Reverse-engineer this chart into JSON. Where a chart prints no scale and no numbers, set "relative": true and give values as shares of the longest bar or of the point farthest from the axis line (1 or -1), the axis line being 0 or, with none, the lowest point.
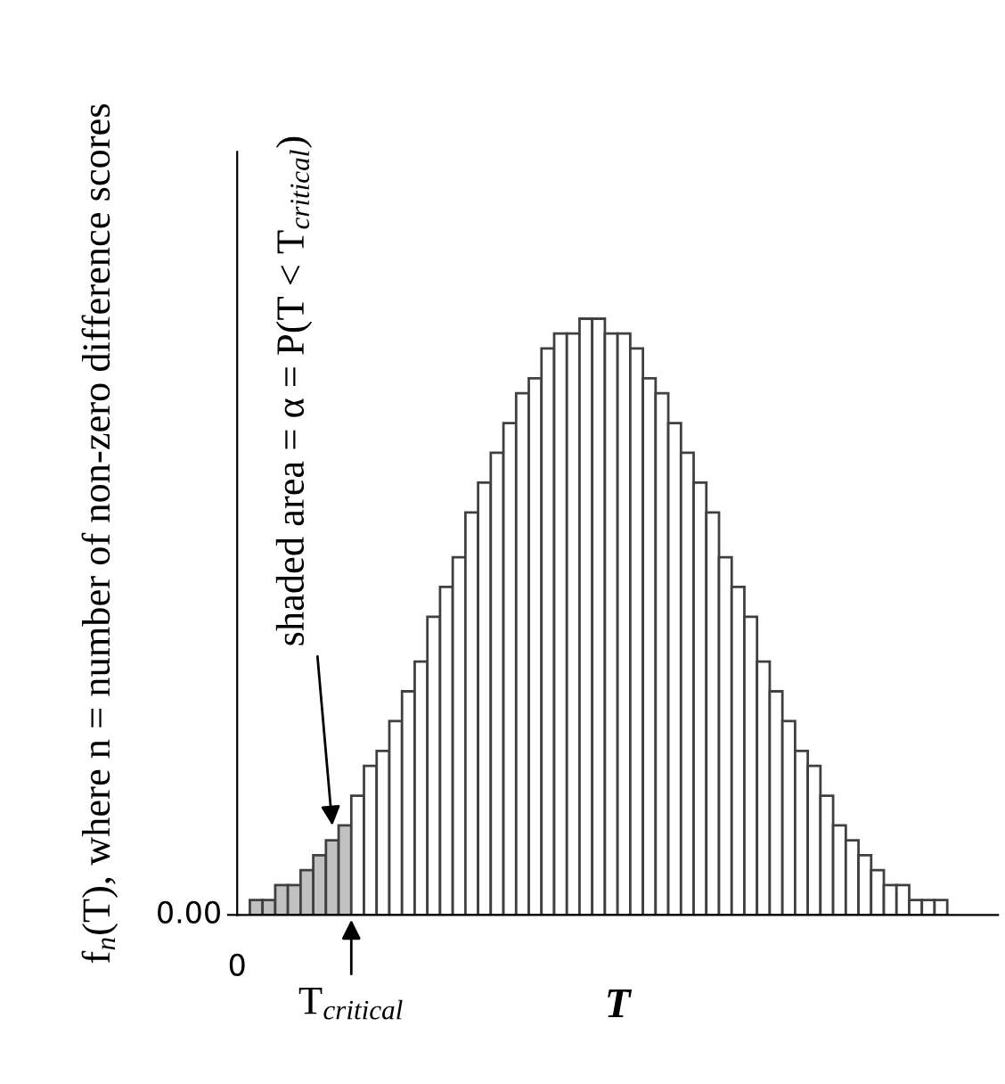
{
  "chart_data": {
    "type": "bar",
    "relative": true,
    "xlabel": "T",
    "ylabel": "f$_{n}$(T), where n = number of non-zero difference scores",
    "categories": [
      null,
      null,
      null,
      null,
      null,
      null,
      null,
      null,
      null,
      null,
      null,
      null,
      null,
      null,
      null,
      null,
      null,
      null,
      null,
      null,
      null,
      null,
      null,
      null,
      null,
      null,
      null,
      null,
      null,
      null,
      null,
      null,
      null,
      null,
      null,
      null,
      null,
      null,
      null,
      null,
      null,
      null,
      null,
      null,
      null,
      null,
      null,
      null,
      null,
      null,
      null,
      null,
      null,
      null,
      null
    ],
    "values": [
      0.025,
      0.025,
      0.05,
      0.05,
      0.075,
      0.1,
      0.125,
      0.15,
      0.2,
      0.25,
      0.275,
      0.325,
      0.375,
      0.425,
      0.5,
      0.55,
      0.6,
      0.675,
      0.725,
      0.775,
      0.825,
      0.875,
      0.9,
      0.95,
      0.975,
      0.975,
      1,
      1,
      0.975,
      0.975,
      0.95,
      0.9,
      0.875,
      0.825,
      0.775,
      0.725,
      0.675,
      0.6,
      0.55,
      0.5,
      0.425,
      0.375,
      0.325,
      0.275,
      0.25,
      0.2,
      0.15,
      0.125,
      0.1,
      0.075,
      0.05,
      0.05,
      0.025,
      0.025,
      0.025
    ],
    "colors": [
      "#c0c0c0",
      "#c0c0c0",
      "#c0c0c0",
      "#c0c0c0",
      "#c0c0c0",
      "#c0c0c0",
      "#c0c0c0",
      "#c0c0c0",
      "#ffffff",
      "#ffffff",
      "#ffffff",
      "#ffffff",
      "#ffffff",
      "#ffffff",
      "#ffffff",
      "#ffffff",
      "#ffffff",
      "#ffffff",
      "#ffffff",
      "#ffffff",
      "#ffffff",
      "#ffffff",
      "#ffffff",
      "#ffffff",
      "#ffffff",
      "#ffffff",
      "#ffffff",
      "#ffffff",
      "#ffffff",
      "#ffffff",
      "#ffffff",
      "#ffffff",
      "#ffffff",
      "#ffffff",
      "#ffffff",
      "#ffffff",
      "#ffffff",
      "#ffffff",
      "#ffffff",
      "#ffffff",
      "#ffffff",
      "#ffffff",
      "#ffffff",
      "#ffffff",
      "#ffffff",
      "#ffffff",
      "#ffffff",
      "#ffffff",
      "#ffffff",
      "#ffffff",
      "#ffffff",
      "#ffffff",
      "#ffffff",
      "#ffffff",
      "#ffffff"
    ],
    "annotations": [
      "shaded area = α = P(T < T$_{critical}$)",
      "T$_{critical}$",
      "0.00",
      "0"
    ],
    "grid": false,
    "legend": false
  }
}
